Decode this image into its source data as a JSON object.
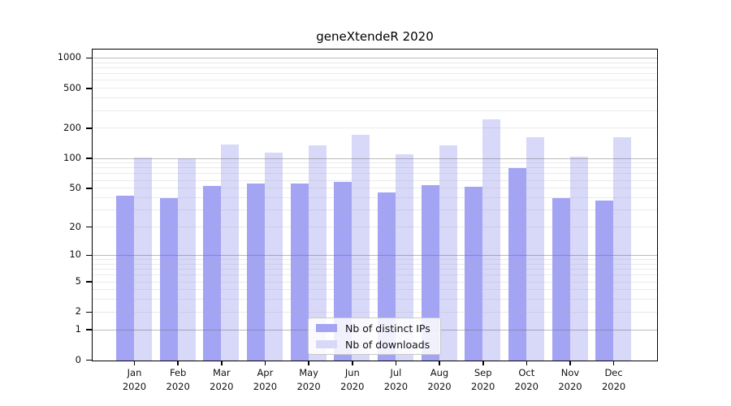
{
  "chart_data": {
    "type": "bar",
    "title": "geneXtendeR 2020",
    "months": [
      "Jan",
      "Feb",
      "Mar",
      "Apr",
      "May",
      "Jun",
      "Jul",
      "Aug",
      "Sep",
      "Oct",
      "Nov",
      "Dec"
    ],
    "year_label": "2020",
    "series": [
      {
        "name": "Nb of distinct IPs",
        "color": "#a4a4f4",
        "values": [
          42,
          40,
          53,
          56,
          56,
          58,
          46,
          54,
          52,
          81,
          40,
          38
        ]
      },
      {
        "name": "Nb of downloads",
        "color": "#d8d8f9",
        "values": [
          103,
          101,
          138,
          115,
          137,
          175,
          110,
          136,
          248,
          163,
          104,
          165
        ]
      }
    ],
    "y_axis": {
      "scale": "log",
      "transform": "log10(value+1)",
      "ticks": [
        0,
        1,
        2,
        5,
        10,
        20,
        50,
        100,
        200,
        500,
        1000
      ],
      "major_gridlines": [
        1,
        10,
        100,
        1000
      ]
    },
    "legend": {
      "position": "lower center"
    },
    "colors": {
      "distinct_ips": "#a4a4f4",
      "downloads": "#d8d8f9",
      "axis": "#000000",
      "major_grid": "#9a9a9a",
      "minor_grid": "#d6d6d6"
    }
  }
}
